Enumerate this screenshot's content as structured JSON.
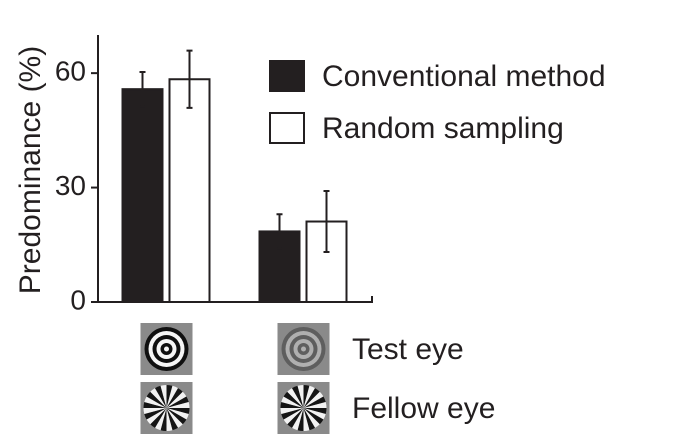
{
  "chart_data": {
    "type": "bar",
    "y_label": "Predominance (%)",
    "categories": [
      null,
      null
    ],
    "series": [
      {
        "name": "Conventional method",
        "color": "#231f20",
        "values": [
          55.8,
          18.5
        ],
        "errors": [
          4.5,
          4.5
        ]
      },
      {
        "name": "Random sampling",
        "color": "#ffffff",
        "values": [
          58.4,
          21.1
        ],
        "errors": [
          7.5,
          8
        ]
      }
    ],
    "ylim": [
      0,
      70
    ],
    "yticks": [
      0,
      30,
      60
    ],
    "legend": "upper right",
    "row_labels": [
      "Test eye",
      "Fellow eye"
    ]
  }
}
